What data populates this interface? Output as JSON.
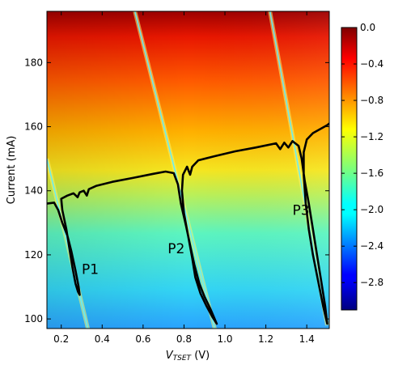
{
  "chart_data": {
    "type": "heatmap",
    "title": "",
    "xlabel_main": "V",
    "xlabel_sub": "TSET",
    "xlabel_unit": " (V)",
    "ylabel": "Current (mA)",
    "xlim": [
      0.13,
      1.51
    ],
    "ylim": [
      97,
      196
    ],
    "x_ticks": [
      0.2,
      0.4,
      0.6,
      0.8,
      1.0,
      1.2,
      1.4
    ],
    "x_tick_labels": [
      "0.2",
      "0.4",
      "0.6",
      "0.8",
      "1.0",
      "1.2",
      "1.4"
    ],
    "y_ticks": [
      100,
      120,
      140,
      160,
      180
    ],
    "y_tick_labels": [
      "100",
      "120",
      "140",
      "160",
      "180"
    ],
    "colorbar": {
      "range": [
        -3.1,
        0.0
      ],
      "ticks": [
        0.0,
        -0.4,
        -0.8,
        -1.2,
        -1.6,
        -2.0,
        -2.4,
        -2.8
      ],
      "tick_labels": [
        "0.0",
        "−0.4",
        "−0.8",
        "−1.2",
        "−1.6",
        "−2.0",
        "−2.4",
        "−2.8"
      ],
      "colormap": "jet"
    },
    "mode_hop_lines": [
      {
        "name": "hop1",
        "points": [
          [
            0.13,
            150
          ],
          [
            0.33,
            97
          ]
        ]
      },
      {
        "name": "hop2",
        "points": [
          [
            0.56,
            196
          ],
          [
            0.95,
            97
          ]
        ]
      },
      {
        "name": "hop3",
        "points": [
          [
            1.22,
            196
          ],
          [
            1.5,
            98
          ]
        ]
      }
    ],
    "black_curve": [
      [
        0.13,
        136.0
      ],
      [
        0.165,
        136.3
      ],
      [
        0.185,
        134.0
      ],
      [
        0.205,
        130.0
      ],
      [
        0.23,
        126.0
      ],
      [
        0.25,
        121.0
      ],
      [
        0.27,
        115.0
      ],
      [
        0.285,
        110.0
      ],
      [
        0.29,
        107.5
      ],
      [
        0.282,
        108.5
      ],
      [
        0.27,
        111.0
      ],
      [
        0.255,
        116.0
      ],
      [
        0.24,
        122.0
      ],
      [
        0.225,
        128.0
      ],
      [
        0.205,
        134.0
      ],
      [
        0.2,
        137.5
      ],
      [
        0.23,
        138.5
      ],
      [
        0.26,
        139.2
      ],
      [
        0.28,
        138.0
      ],
      [
        0.29,
        139.5
      ],
      [
        0.31,
        140.0
      ],
      [
        0.325,
        138.5
      ],
      [
        0.335,
        140.5
      ],
      [
        0.37,
        141.5
      ],
      [
        0.45,
        142.8
      ],
      [
        0.55,
        144.0
      ],
      [
        0.65,
        145.3
      ],
      [
        0.71,
        146.0
      ],
      [
        0.75,
        145.5
      ],
      [
        0.77,
        142.0
      ],
      [
        0.785,
        136.0
      ],
      [
        0.81,
        129.0
      ],
      [
        0.83,
        123.0
      ],
      [
        0.85,
        117.0
      ],
      [
        0.875,
        111.0
      ],
      [
        0.9,
        107.0
      ],
      [
        0.93,
        103.0
      ],
      [
        0.96,
        98.5
      ],
      [
        0.94,
        100.5
      ],
      [
        0.91,
        104.0
      ],
      [
        0.88,
        108.0
      ],
      [
        0.855,
        113.0
      ],
      [
        0.84,
        119.0
      ],
      [
        0.82,
        126.0
      ],
      [
        0.8,
        133.0
      ],
      [
        0.79,
        140.0
      ],
      [
        0.795,
        145.0
      ],
      [
        0.815,
        147.5
      ],
      [
        0.83,
        145.0
      ],
      [
        0.84,
        147.5
      ],
      [
        0.87,
        149.5
      ],
      [
        0.95,
        150.8
      ],
      [
        1.05,
        152.3
      ],
      [
        1.15,
        153.5
      ],
      [
        1.25,
        154.8
      ],
      [
        1.27,
        153.0
      ],
      [
        1.29,
        155.0
      ],
      [
        1.31,
        153.5
      ],
      [
        1.33,
        155.5
      ],
      [
        1.36,
        154.0
      ],
      [
        1.375,
        150.0
      ],
      [
        1.39,
        143.0
      ],
      [
        1.41,
        136.0
      ],
      [
        1.43,
        128.0
      ],
      [
        1.45,
        120.0
      ],
      [
        1.47,
        112.0
      ],
      [
        1.49,
        104.0
      ],
      [
        1.5,
        98.5
      ],
      [
        1.48,
        104.0
      ],
      [
        1.455,
        112.0
      ],
      [
        1.43,
        120.0
      ],
      [
        1.41,
        128.0
      ],
      [
        1.395,
        136.0
      ],
      [
        1.385,
        145.0
      ],
      [
        1.385,
        152.0
      ],
      [
        1.4,
        156.0
      ],
      [
        1.43,
        158.0
      ],
      [
        1.5,
        160.5
      ],
      [
        1.51,
        161.0
      ]
    ],
    "annotations": [
      {
        "text": "P1",
        "x": 0.3,
        "y": 114.0
      },
      {
        "text": "P2",
        "x": 0.72,
        "y": 120.5
      },
      {
        "text": "P3",
        "x": 1.33,
        "y": 132.5
      }
    ]
  }
}
